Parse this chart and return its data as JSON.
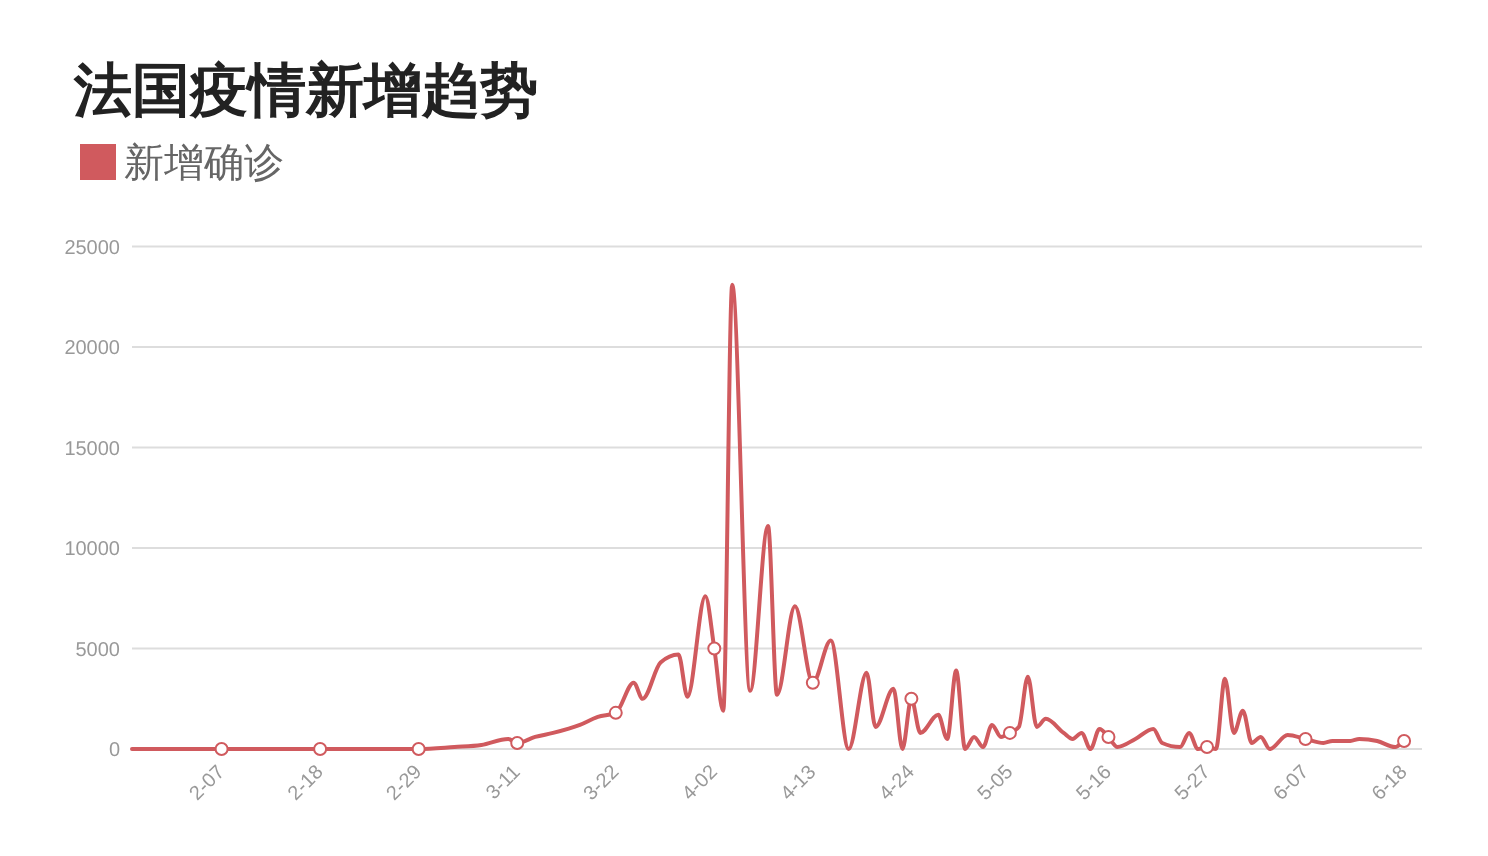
{
  "chart_data": {
    "type": "line",
    "title": "法国疫情新增趋势",
    "x": [
      "--01-28",
      "--02-07",
      "--02-18",
      "--02-29",
      "--03-04",
      "--03-07",
      "--03-10",
      "--03-11",
      "--03-13",
      "--03-15",
      "--03-18",
      "--03-20",
      "--03-22",
      "--03-24",
      "--03-25",
      "--03-27",
      "--03-29",
      "--03-30",
      "--04-01",
      "--04-02",
      "--04-03",
      "--04-04",
      "--04-06",
      "--04-08",
      "--04-09",
      "--04-11",
      "--04-13",
      "--04-15",
      "--04-17",
      "--04-19",
      "--04-20",
      "--04-22",
      "--04-23",
      "--04-24",
      "--04-25",
      "--04-27",
      "--04-28",
      "--04-29",
      "--04-30",
      "--05-01",
      "--05-02",
      "--05-03",
      "--05-04",
      "--05-05",
      "--05-06",
      "--05-07",
      "--05-08",
      "--05-09",
      "--05-11",
      "--05-12",
      "--05-13",
      "--05-14",
      "--05-15",
      "--05-16",
      "--05-17",
      "--05-19",
      "--05-21",
      "--05-22",
      "--05-24",
      "--05-25",
      "--05-26",
      "--05-27",
      "--05-28",
      "--05-29",
      "--05-30",
      "--05-31",
      "--06-01",
      "--06-02",
      "--06-03",
      "--06-05",
      "--06-07",
      "--06-09",
      "--06-10",
      "--06-11",
      "--06-12",
      "--06-13",
      "--06-15",
      "--06-17",
      "--06-18"
    ],
    "series": [
      {
        "name": "新增确诊",
        "color": "#d05a5e",
        "marker": "none",
        "values": [
          0,
          0,
          0,
          0,
          100,
          200,
          500,
          300,
          600,
          800,
          1200,
          1600,
          1800,
          3300,
          2500,
          4300,
          4700,
          2600,
          7600,
          5000,
          1900,
          23100,
          2900,
          11100,
          2700,
          7100,
          3300,
          5400,
          0,
          3800,
          1100,
          3000,
          0,
          2500,
          800,
          1700,
          500,
          3900,
          0,
          600,
          100,
          1200,
          600,
          800,
          1100,
          3600,
          1100,
          1500,
          800,
          500,
          800,
          0,
          1000,
          600,
          100,
          500,
          1000,
          300,
          100,
          800,
          0,
          100,
          0,
          3500,
          800,
          1900,
          300,
          600,
          0,
          700,
          500,
          300,
          400,
          400,
          400,
          500,
          400,
          100,
          400
        ]
      },
      {
        "type": "scatter",
        "color": "#d05a5e",
        "marker": "circle",
        "x": [
          "--02-07",
          "--02-18",
          "--02-29",
          "--03-11",
          "--03-22",
          "--04-02",
          "--04-13",
          "--04-24",
          "--05-05",
          "--05-16",
          "--05-27",
          "--06-07",
          "--06-18"
        ],
        "values": [
          0,
          0,
          0,
          300,
          1800,
          5000,
          3300,
          2500,
          800,
          600,
          100,
          500,
          400
        ]
      }
    ],
    "xlim": [
      "--01-28",
      "--06-20"
    ],
    "xticks": [
      {
        "value": "--02-07",
        "label": "2-07"
      },
      {
        "value": "--02-18",
        "label": "2-18"
      },
      {
        "value": "--02-29",
        "label": "2-29"
      },
      {
        "value": "--03-11",
        "label": "3-11"
      },
      {
        "value": "--03-22",
        "label": "3-22"
      },
      {
        "value": "--04-02",
        "label": "4-02"
      },
      {
        "value": "--04-13",
        "label": "4-13"
      },
      {
        "value": "--04-24",
        "label": "4-24"
      },
      {
        "value": "--05-05",
        "label": "5-05"
      },
      {
        "value": "--05-16",
        "label": "5-16"
      },
      {
        "value": "--05-27",
        "label": "5-27"
      },
      {
        "value": "--06-07",
        "label": "6-07"
      },
      {
        "value": "--06-18",
        "label": "6-18"
      }
    ],
    "ylim": [
      0,
      25000
    ],
    "yticks": [
      0,
      5000,
      10000,
      15000,
      20000,
      25000
    ],
    "grid": "y",
    "legend": "top left",
    "line_style": "solid"
  }
}
